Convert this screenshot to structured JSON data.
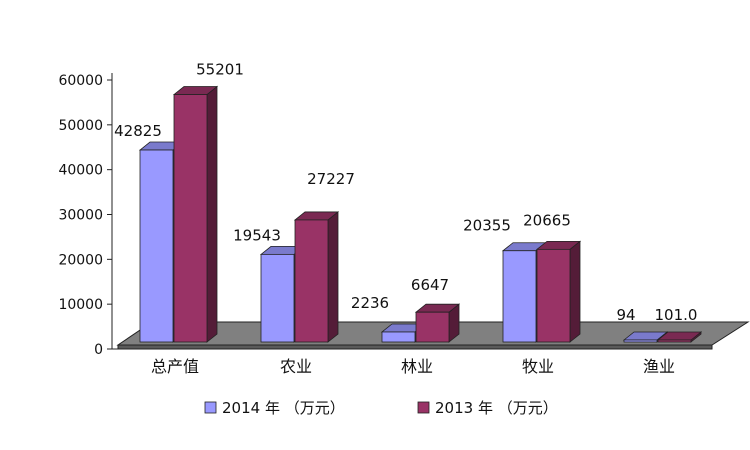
{
  "chart_data": {
    "type": "bar",
    "categories": [
      "总产值",
      "农业",
      "林业",
      "牧业",
      "渔业"
    ],
    "series": [
      {
        "name": "2014 年 （万元）",
        "values": [
          42825,
          19543,
          2236,
          20355,
          94
        ],
        "labels": [
          "42825",
          "19543",
          "2236",
          "20355",
          "94"
        ],
        "color": "#9999ff"
      },
      {
        "name": "2013 年 （万元）",
        "values": [
          55201,
          27227,
          6647,
          20665,
          101.0
        ],
        "labels": [
          "55201",
          "27227",
          "6647",
          "20665",
          "101.0"
        ],
        "color": "#993366"
      }
    ],
    "ylim": [
      0,
      60000
    ],
    "yticks": [
      "0",
      "10000",
      "20000",
      "30000",
      "40000",
      "50000",
      "60000"
    ],
    "grid": false,
    "legend_position": "bottom",
    "style": "3d-clustered-bar"
  }
}
